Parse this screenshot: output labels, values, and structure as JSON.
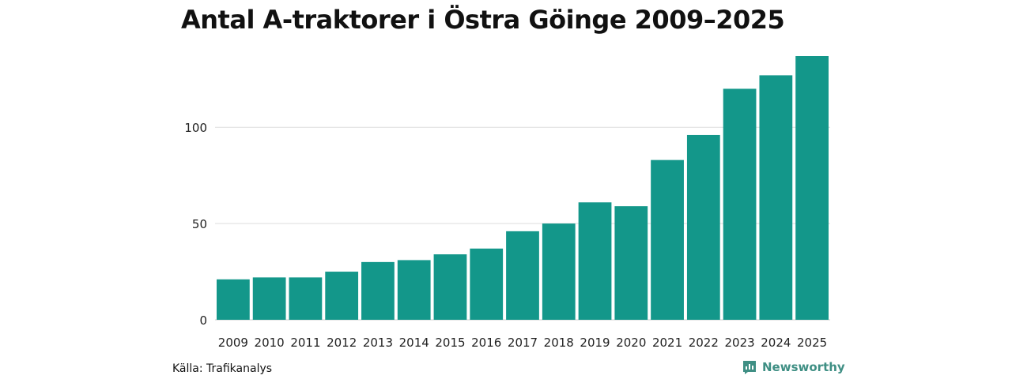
{
  "chart_data": {
    "type": "bar",
    "title": "Antal A-traktorer i Östra Göinge 2009–2025",
    "xlabel": "",
    "ylabel": "",
    "categories": [
      "2009",
      "2010",
      "2011",
      "2012",
      "2013",
      "2014",
      "2015",
      "2016",
      "2017",
      "2018",
      "2019",
      "2020",
      "2021",
      "2022",
      "2023",
      "2024",
      "2025"
    ],
    "values": [
      21,
      22,
      22,
      25,
      30,
      31,
      34,
      37,
      46,
      50,
      61,
      59,
      83,
      96,
      120,
      127,
      137
    ],
    "ylim": [
      0,
      137
    ],
    "yticks": [
      0,
      50,
      100
    ],
    "ytick_labels": [
      "0",
      "50",
      "100"
    ],
    "grid": true,
    "bar_color": "#13978a",
    "grid_color": "#dddddd"
  },
  "footer": {
    "source": "Källa: Trafikanalys",
    "brand": "Newsworthy",
    "brand_icon": "newsworthy-logo-icon",
    "brand_color": "#3f8f84"
  }
}
